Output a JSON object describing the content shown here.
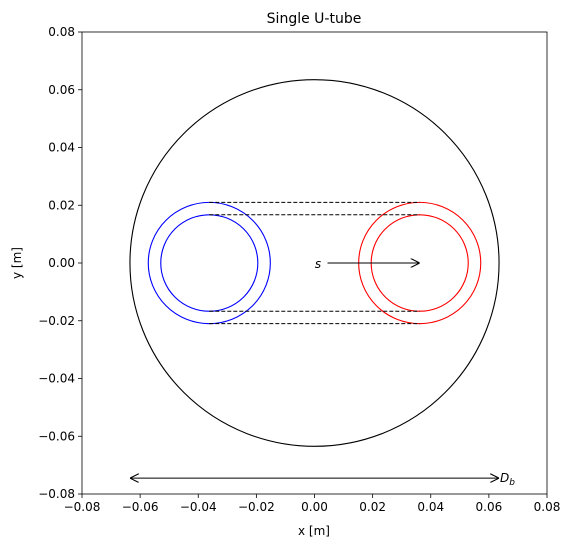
{
  "chart_data": {
    "type": "diagram",
    "title": "Single U-tube",
    "xlabel": "x [m]",
    "ylabel": "y [m]",
    "xlim": [
      -0.08,
      0.08
    ],
    "ylim": [
      -0.08,
      0.08
    ],
    "xticks": [
      -0.08,
      -0.06,
      -0.04,
      -0.02,
      0.0,
      0.02,
      0.04,
      0.06,
      0.08
    ],
    "yticks": [
      -0.08,
      -0.06,
      -0.04,
      -0.02,
      0.0,
      0.02,
      0.04,
      0.06,
      0.08
    ],
    "xtick_labels": [
      "−0.08",
      "−0.06",
      "−0.04",
      "−0.02",
      "0.00",
      "0.02",
      "0.04",
      "0.06",
      "0.08"
    ],
    "ytick_labels": [
      "−0.08",
      "−0.06",
      "−0.04",
      "−0.02",
      "0.00",
      "0.02",
      "0.04",
      "0.06",
      "0.08"
    ],
    "borehole": {
      "cx": 0.0,
      "cy": 0.0,
      "r": 0.0635,
      "color": "#000000"
    },
    "pipes": [
      {
        "cx": -0.0362,
        "cy": 0.0,
        "r_out": 0.021,
        "r_in": 0.0167,
        "color": "#0000ff"
      },
      {
        "cx": 0.0362,
        "cy": 0.0,
        "r_out": 0.021,
        "r_in": 0.0167,
        "color": "#ff0000"
      }
    ],
    "dashed_lines_y": [
      0.021,
      0.0167,
      -0.0167,
      -0.021
    ],
    "spacing_arrow": {
      "label": "s",
      "x_from": 0.0,
      "x_to": 0.0362,
      "y": 0.0
    },
    "diameter_arrow": {
      "label": "D",
      "label_sub": "b",
      "x_from": -0.0635,
      "x_to": 0.0635,
      "y": -0.0745
    }
  }
}
